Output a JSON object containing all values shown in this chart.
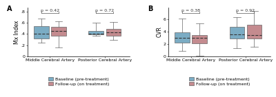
{
  "panel_A": {
    "title": "A",
    "ylabel": "Mx Index",
    "groups": [
      "Middle Cerebral Artery",
      "Posterior Cerebral Artery"
    ],
    "p_values": [
      "p = 0.42",
      "p = 0.72"
    ],
    "baseline": {
      "MCA": {
        "whislo": 0.24,
        "q1": 0.32,
        "med": 0.4,
        "q3": 0.54,
        "whishi": 0.67
      },
      "PCA": {
        "whislo": 0.37,
        "q1": 0.39,
        "med": 0.41,
        "q3": 0.46,
        "whishi": 0.6
      }
    },
    "followup": {
      "MCA": {
        "whislo": 0.16,
        "q1": 0.37,
        "med": 0.46,
        "q3": 0.53,
        "whishi": 0.63
      },
      "PCA": {
        "whislo": 0.29,
        "q1": 0.37,
        "med": 0.43,
        "q3": 0.49,
        "whishi": 0.62
      }
    },
    "ylim": [
      0,
      0.87
    ],
    "yticks": [
      0,
      0.2,
      0.4,
      0.6,
      0.8
    ],
    "yticklabels": [
      "0",
      ".2",
      ".4",
      ".6",
      ".8"
    ]
  },
  "panel_B": {
    "title": "B",
    "ylabel": "CVR",
    "groups": [
      "Middle Cerebral Artery",
      "Posterior Cerebral Artery"
    ],
    "p_values": [
      "p = 0.38",
      "p = 0.92"
    ],
    "baseline": {
      "MCA": {
        "whislo": 0.9,
        "q1": 2.2,
        "med": 3.0,
        "q3": 3.9,
        "whishi": 6.1
      },
      "PCA": {
        "whislo": 1.3,
        "q1": 2.9,
        "med": 3.5,
        "q3": 4.7,
        "whishi": 6.3
      }
    },
    "followup": {
      "MCA": {
        "whislo": 0.05,
        "q1": 2.1,
        "med": 3.0,
        "q3": 3.4,
        "whishi": 5.3
      },
      "PCA": {
        "whislo": 1.5,
        "q1": 2.8,
        "med": 3.4,
        "q3": 5.1,
        "whishi": 7.3
      }
    },
    "ylim": [
      0,
      7.8
    ],
    "yticks": [
      0,
      2,
      4,
      6
    ],
    "yticklabels": [
      "0",
      "2",
      "4",
      "6"
    ]
  },
  "baseline_color": "#7BACC4",
  "followup_color": "#C48B8F",
  "baseline_label": "Baseline (pre-treatment)",
  "followup_label": "Follow-up (on treatment)",
  "background_color": "#ffffff",
  "box_width": 0.3,
  "fontsize_label": 5.5,
  "fontsize_tick": 4.5,
  "fontsize_pval": 4.5,
  "fontsize_panel": 7,
  "fontsize_legend": 4.5
}
